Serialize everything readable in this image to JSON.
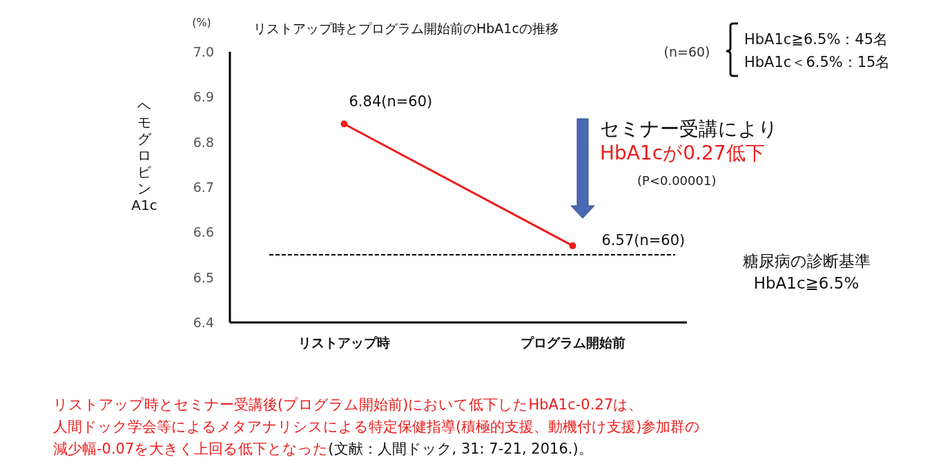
{
  "chart_data": {
    "type": "line",
    "title": "リストアップ時とプログラム開始前のHbA1cの推移",
    "ylabel": "ヘモグロビンA1c",
    "categories": [
      "リストアップ時",
      "プログラム開始前"
    ],
    "series": [
      {
        "color": "#ee1c1c",
        "values": [
          6.84,
          6.57
        ],
        "value_labels": [
          "6.84(n=60)",
          "6.57(n=60)"
        ]
      }
    ],
    "marker": "circle",
    "line_style": "solid",
    "grid": false,
    "ylim": [
      6.4,
      7.0
    ],
    "yticks": [
      6.4,
      6.5,
      6.6,
      6.7,
      6.8,
      6.9,
      {
        "value": 7.0,
        "label": "7.0"
      }
    ],
    "ref_lines": [
      {
        "axis": "y",
        "value": 6.55,
        "label": "糖尿病の診断基準\nHbA1c≧6.5%",
        "color": "#000000",
        "line_style": "dashed"
      }
    ],
    "annotations": [
      "(%)",
      "(n=60)",
      "HbA1c≧6.5%：45名",
      "HbA1c＜6.5%：15名",
      "セミナー受講により",
      "HbA1cが0.27低下",
      "(P<0.00001)",
      "リストアップ時とセミナー受講後(プログラム開始前)において低下したHbA1c-0.27は、",
      "人間ドック学会等によるメタアナリシスによる特定保健指導(積極的支援、動機付け支援)参加群の",
      "減少幅-0.07を大きく上回る低下となった",
      "(文献：人間ドック, 31: 7-21, 2016.)。"
    ]
  }
}
